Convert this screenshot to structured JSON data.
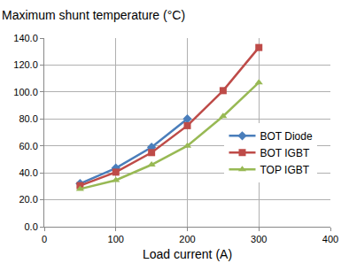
{
  "chart_data": {
    "type": "line",
    "title": "Maximum shunt temperature (°C)",
    "x_label": "Load current (A)",
    "x": [
      50,
      100,
      150,
      200,
      250,
      300
    ],
    "series": [
      {
        "name": "BOT Diode",
        "color": "#4a7ebb",
        "marker": "diamond",
        "values": [
          32,
          43.5,
          59,
          80,
          null,
          null
        ]
      },
      {
        "name": "BOT IGBT",
        "color": "#be4b48",
        "marker": "square",
        "values": [
          30.5,
          40.5,
          55,
          75,
          101,
          133
        ]
      },
      {
        "name": "TOP IGBT",
        "color": "#98b954",
        "marker": "triangle",
        "values": [
          28,
          34.5,
          46,
          60,
          82,
          107
        ]
      }
    ],
    "xlim": [
      0,
      400
    ],
    "xticks": [
      0,
      100,
      200,
      300,
      400
    ],
    "ylim": [
      0,
      140
    ],
    "yticks": [
      {
        "value": 0,
        "label": "0.0"
      },
      {
        "value": 20,
        "label": "20.0"
      },
      {
        "value": 40,
        "label": "40.0"
      },
      {
        "value": 60,
        "label": "60.0"
      },
      {
        "value": 80,
        "label": "80.0"
      },
      {
        "value": 100,
        "label": "100.0"
      },
      {
        "value": 120,
        "label": "120.0"
      },
      {
        "value": 140,
        "label": "140.0"
      }
    ],
    "grid": true,
    "legend": "right"
  }
}
